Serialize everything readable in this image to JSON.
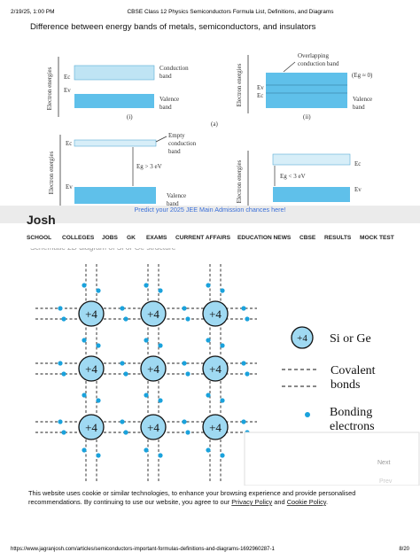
{
  "header": {
    "datetime": "2/19/25, 1:00 PM",
    "title": "CBSE Class 12 Physics Semiconductors Formula List, Definitions, and Diagrams"
  },
  "section_heading": "Difference between energy bands of metals, semiconductors, and insulators",
  "band_diagram": {
    "axis_label": "Electron energies",
    "panel_i": {
      "ec": "Ec",
      "ev": "Ev",
      "conduction": [
        "Conduction",
        "band"
      ],
      "valence": [
        "Valence",
        "band"
      ],
      "label": "(i)"
    },
    "panel_ii": {
      "ec": "Ec",
      "ev": "Ev",
      "overlap": [
        "Overlapping",
        "conduction band"
      ],
      "gap": "(Eg ≈ 0)",
      "valence": [
        "Valence",
        "band"
      ],
      "label": "(ii)"
    },
    "figure_label": "(a)",
    "panel_iii": {
      "ec": "Ec",
      "ev": "Ev",
      "empty": [
        "Empty",
        "conduction",
        "band"
      ],
      "gap": "Eg > 3 eV",
      "valence": [
        "Valence",
        "band"
      ]
    },
    "panel_iv": {
      "ec": "Ec",
      "ev": "Ev",
      "gap": "Eg < 3 eV"
    }
  },
  "banner": "Predict your 2025 JEE Main Admission chances here!",
  "logo": "Josh",
  "nav": [
    "SCHOOL",
    "COLLEGES",
    "JOBS",
    "GK",
    "EXAMS",
    "CURRENT AFFAIRS",
    "EDUCATION NEWS",
    "CBSE",
    "RESULTS",
    "MOCK TEST"
  ],
  "lattice_heading": "Schematic 2D diagram of Si or Ge structure",
  "lattice": {
    "atoms": [
      "+4",
      "+4",
      "+4",
      "+4",
      "+4",
      "+4",
      "+4",
      "+4",
      "+4"
    ],
    "legend": {
      "atom": "+4",
      "atom_text": "Si or Ge",
      "bonds": [
        "Covalent",
        "bonds"
      ],
      "electrons": [
        "Bonding",
        "electrons"
      ]
    }
  },
  "popup": {
    "next": "Next",
    "prev": "Prev"
  },
  "cookie": {
    "line1": "This website uses cookie or similar technologies, to enhance your browsing experience and provide personalised",
    "line2_start": "recommendations. By continuing to use our website, you agree to our ",
    "privacy": "Privacy Policy",
    "and": " and ",
    "cookie_policy": "Cookie Policy",
    "end": "."
  },
  "footer": {
    "url": "https://www.jagranjosh.com/articles/semiconductors-important-formulas-definitions-and-diagrams-1692960287-1",
    "page": "8/20"
  }
}
